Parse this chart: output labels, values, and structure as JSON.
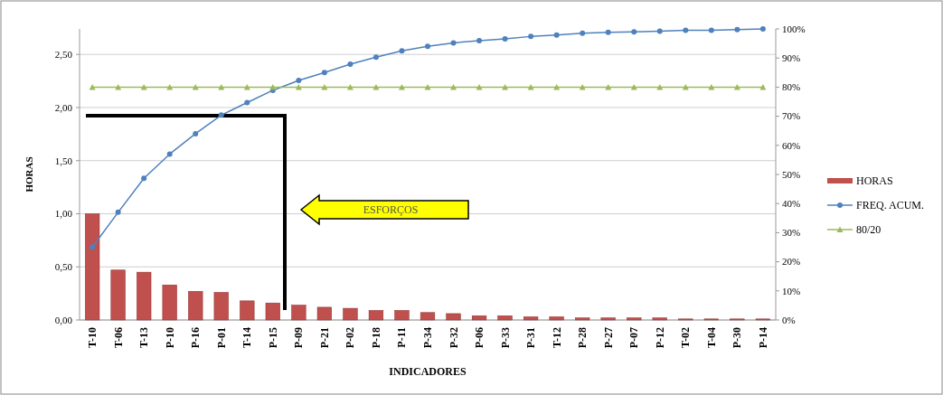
{
  "chart_data": {
    "type": "bar",
    "xlabel": "INDICADORES",
    "ylabel": "HORAS",
    "categories": [
      "T-10",
      "T-06",
      "T-13",
      "P-10",
      "P-16",
      "P-01",
      "T-14",
      "P-15",
      "P-09",
      "P-21",
      "P-02",
      "P-18",
      "P-11",
      "P-34",
      "P-32",
      "P-06",
      "P-33",
      "P-31",
      "T-12",
      "P-28",
      "P-27",
      "P-07",
      "P-12",
      "T-02",
      "T-04",
      "P-30",
      "P-14"
    ],
    "series": [
      {
        "name": "HORAS",
        "color": "#c0504d",
        "values": [
          1.0,
          0.47,
          0.45,
          0.33,
          0.27,
          0.26,
          0.18,
          0.16,
          0.14,
          0.12,
          0.11,
          0.09,
          0.09,
          0.07,
          0.06,
          0.04,
          0.04,
          0.03,
          0.03,
          0.02,
          0.02,
          0.02,
          0.02,
          0.01,
          0.01,
          0.01,
          0.01
        ]
      },
      {
        "name": "FREQ. ACUM.",
        "type": "line",
        "axis": "y2",
        "marker": "circle",
        "color": "#4f81bd",
        "values": [
          25,
          37,
          48.7,
          57,
          64,
          70.4,
          74.7,
          78.9,
          82.3,
          85,
          87.9,
          90.3,
          92.5,
          94,
          95.2,
          96,
          96.6,
          97.4,
          97.9,
          98.5,
          98.8,
          99,
          99.2,
          99.5,
          99.5,
          99.8,
          100
        ]
      },
      {
        "name": "80/20",
        "type": "line",
        "axis": "y2",
        "marker": "triangle",
        "color": "#9bbb59",
        "values": [
          80,
          80,
          80,
          80,
          80,
          80,
          80,
          80,
          80,
          80,
          80,
          80,
          80,
          80,
          80,
          80,
          80,
          80,
          80,
          80,
          80,
          80,
          80,
          80,
          80,
          80,
          80
        ]
      }
    ],
    "ylim": [
      0,
      2.74
    ],
    "yticks": [
      {
        "value": 0,
        "label": "0,00"
      },
      {
        "value": 0.5,
        "label": "0,50"
      },
      {
        "value": 1,
        "label": "1,00"
      },
      {
        "value": 1.5,
        "label": "1,50"
      },
      {
        "value": 2,
        "label": "2,00"
      },
      {
        "value": 2.5,
        "label": "2,50"
      }
    ],
    "y2lim": [
      0,
      100
    ],
    "y2ticks": [
      {
        "value": 0,
        "label": "0%"
      },
      {
        "value": 10,
        "label": "10%"
      },
      {
        "value": 20,
        "label": "20%"
      },
      {
        "value": 30,
        "label": "30%"
      },
      {
        "value": 40,
        "label": "40%"
      },
      {
        "value": 50,
        "label": "50%"
      },
      {
        "value": 60,
        "label": "60%"
      },
      {
        "value": 70,
        "label": "70%"
      },
      {
        "value": 80,
        "label": "80%"
      },
      {
        "value": 90,
        "label": "90%"
      },
      {
        "value": 100,
        "label": "100%"
      }
    ],
    "grid": "y",
    "legend": "right",
    "annotations": [
      "ESFORÇOS"
    ]
  }
}
